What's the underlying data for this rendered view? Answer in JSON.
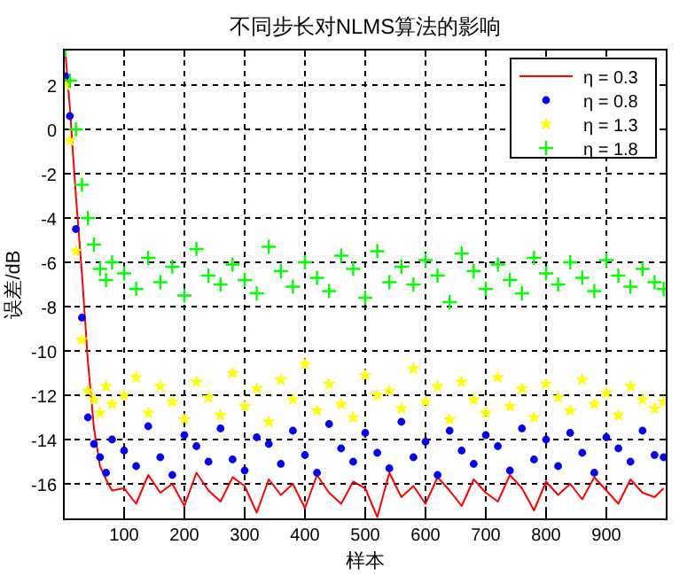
{
  "chart_data": {
    "type": "scatter",
    "title": "不同步长对NLMS算法的影响",
    "xlabel": "样本",
    "ylabel": "误差/dB",
    "x": [
      3,
      10,
      20,
      30,
      40,
      50,
      60,
      70,
      80,
      100,
      120,
      140,
      160,
      180,
      200,
      220,
      240,
      260,
      280,
      300,
      320,
      340,
      360,
      380,
      400,
      420,
      440,
      460,
      480,
      500,
      520,
      540,
      560,
      580,
      600,
      620,
      640,
      660,
      680,
      700,
      720,
      740,
      760,
      780,
      800,
      820,
      840,
      860,
      880,
      900,
      920,
      940,
      960,
      980,
      995
    ],
    "series": [
      {
        "name": "η = 0.3",
        "type": "line",
        "color": "#ff0000",
        "marker": "none",
        "values": [
          3.3,
          1.0,
          -3.0,
          -6.5,
          -10.5,
          -13.5,
          -15.2,
          -15.8,
          -16.3,
          -16.2,
          -16.9,
          -15.6,
          -16.4,
          -16.0,
          -17.0,
          -15.5,
          -16.3,
          -16.8,
          -15.7,
          -16.1,
          -17.3,
          -15.8,
          -16.5,
          -16.0,
          -17.1,
          -15.6,
          -16.4,
          -16.9,
          -15.9,
          -16.2,
          -17.5,
          -15.5,
          -16.6,
          -16.1,
          -16.9,
          -15.7,
          -16.3,
          -17.0,
          -15.8,
          -16.4,
          -16.8,
          -15.6,
          -16.2,
          -17.2,
          -15.9,
          -16.5,
          -16.0,
          -16.7,
          -15.7,
          -16.3,
          -16.9,
          -15.8,
          -16.4,
          -16.6,
          -16.2
        ]
      },
      {
        "name": "η = 0.8",
        "color": "#0000ff",
        "marker": "circle",
        "values": [
          2.4,
          0.6,
          -4.5,
          -8.5,
          -13.0,
          -14.2,
          -14.8,
          -15.5,
          -14.0,
          -14.5,
          -15.2,
          -13.4,
          -14.8,
          -15.6,
          -13.8,
          -14.3,
          -15.0,
          -13.5,
          -14.9,
          -15.4,
          -13.9,
          -14.2,
          -15.1,
          -13.6,
          -14.7,
          -15.5,
          -13.3,
          -14.4,
          -15.0,
          -13.7,
          -14.6,
          -15.3,
          -13.2,
          -14.8,
          -14.1,
          -15.6,
          -13.6,
          -14.5,
          -15.1,
          -13.8,
          -14.3,
          -15.4,
          -13.5,
          -14.9,
          -14.0,
          -15.2,
          -13.7,
          -14.6,
          -15.5,
          -13.9,
          -14.4,
          -15.0,
          -13.6,
          -14.7,
          -14.8
        ]
      },
      {
        "name": "η = 1.3",
        "color": "#ffff00",
        "marker": "star",
        "values": [
          2.0,
          -0.5,
          -5.5,
          -9.5,
          -11.8,
          -12.2,
          -12.8,
          -11.6,
          -12.4,
          -12.0,
          -11.2,
          -12.8,
          -11.6,
          -12.3,
          -13.1,
          -11.4,
          -12.1,
          -12.9,
          -11.0,
          -12.5,
          -11.7,
          -13.2,
          -11.3,
          -12.2,
          -10.6,
          -12.7,
          -11.5,
          -12.4,
          -13.0,
          -11.1,
          -12.0,
          -11.8,
          -12.6,
          -10.8,
          -12.3,
          -11.6,
          -13.1,
          -11.4,
          -12.2,
          -12.8,
          -11.2,
          -12.5,
          -11.7,
          -13.0,
          -11.5,
          -12.1,
          -12.7,
          -11.3,
          -12.4,
          -11.9,
          -12.9,
          -11.6,
          -12.2,
          -12.6,
          -12.3
        ]
      },
      {
        "name": "η = 1.8",
        "color": "#00ff00",
        "marker": "cross",
        "values": [
          3.6,
          2.2,
          0.0,
          -2.5,
          -4.0,
          -5.2,
          -6.3,
          -6.8,
          -6.0,
          -6.5,
          -7.2,
          -5.8,
          -6.9,
          -6.2,
          -7.5,
          -5.4,
          -6.6,
          -7.0,
          -6.1,
          -6.8,
          -7.4,
          -5.3,
          -6.4,
          -7.1,
          -6.0,
          -6.7,
          -7.3,
          -5.7,
          -6.3,
          -7.6,
          -5.5,
          -6.9,
          -6.2,
          -7.0,
          -5.9,
          -6.6,
          -7.8,
          -5.6,
          -6.4,
          -7.2,
          -6.1,
          -6.8,
          -7.4,
          -5.8,
          -6.5,
          -7.0,
          -6.0,
          -6.7,
          -7.3,
          -5.9,
          -6.6,
          -7.1,
          -6.3,
          -6.9,
          -7.2
        ]
      }
    ],
    "xlim": [
      0,
      1000
    ],
    "xticks": [
      100,
      200,
      300,
      400,
      500,
      600,
      700,
      800,
      900
    ],
    "ylim": [
      -17.6,
      3.6
    ],
    "yticks": [
      -16,
      -14,
      -12,
      -10,
      -8,
      -6,
      -4,
      -2,
      0,
      2
    ],
    "grid": true,
    "legend": "top right"
  }
}
